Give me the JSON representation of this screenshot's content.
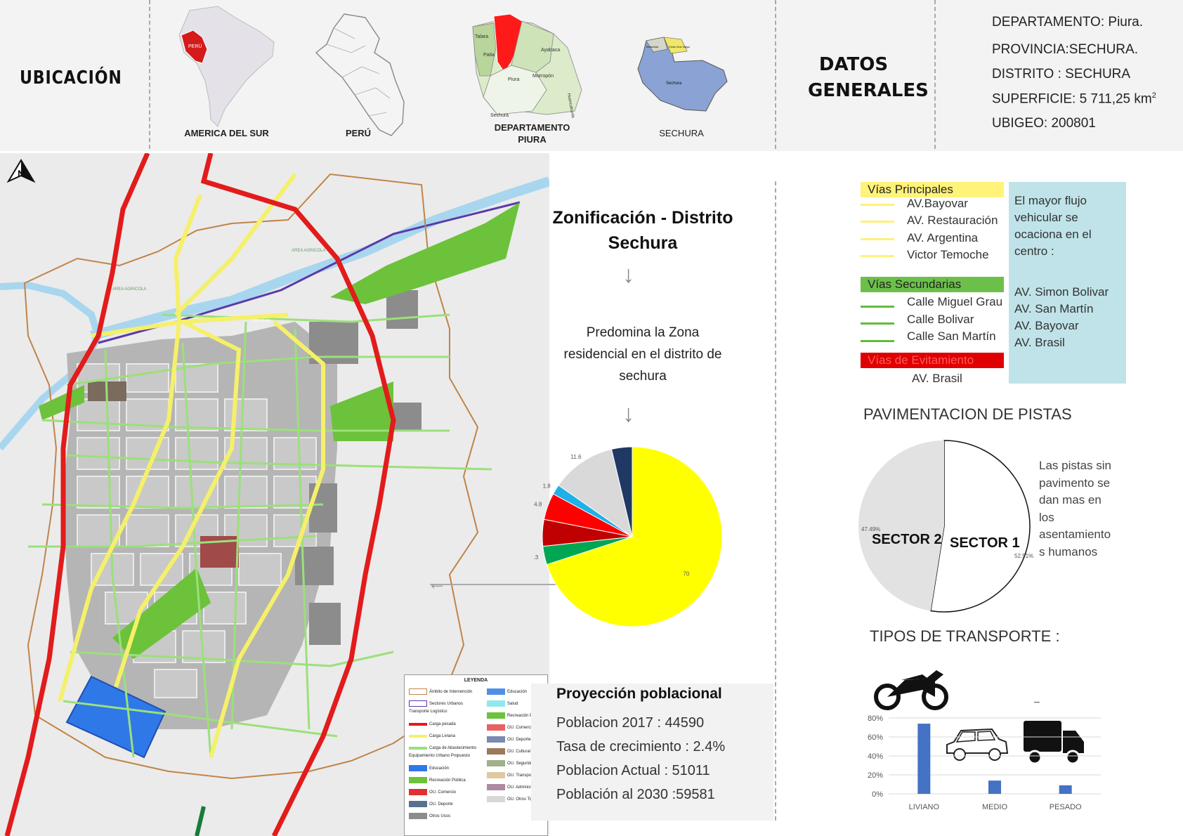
{
  "header": {
    "ubicacion_title": "UBICACIÓN",
    "map_labels": [
      "AMERICA DEL SUR",
      "PERÚ",
      "DEPARTAMENTO",
      "PIURA",
      "SECHURA"
    ],
    "dept_map_labels": [
      "Talara",
      "Paita",
      "Piura",
      "Sechura",
      "Ayabaca",
      "Morropón",
      "Huancabamba"
    ],
    "sechura_map_labels": [
      "Sechura",
      "Bellavista",
      "Cristo Nos Valga"
    ],
    "peru_tag": "PERÚ",
    "datos_title_line1": "DATOS",
    "datos_title_line2": "GENERALES",
    "general_data": {
      "departamento": "DEPARTAMENTO:  Piura.",
      "provincia": "PROVINCIA:SECHURA.",
      "distrito": "DISTRITO : SECHURA",
      "superficie": "SUPERFICIE: 5 711,25 km",
      "superficie_sup": "2",
      "ubigeo": "UBIGEO: 200801"
    }
  },
  "map": {
    "north_symbol": "N",
    "area_labels": [
      "AREA AGRICOLA",
      "AREA AGRICOLA",
      "RIO PIURA"
    ],
    "legend": {
      "title": "LEYENDA",
      "left_items": [
        "Ámbito de Intervención",
        "Sectores Urbanos",
        "Transporte Logístico",
        "Carga pesada",
        "Carga Liviana",
        "Carga de Abastecimiento",
        "Equipamiento Urbano Propuesto",
        "Educación",
        "Recreación Pública",
        "OU. Comercio",
        "OU. Deporte",
        "Otros Usos"
      ],
      "right_items": [
        "Educación",
        "Salud",
        "Recreación P.",
        "OU. Comercio",
        "OU. Deporte",
        "OU. Cultural",
        "OU. Seguridad",
        "OU. Transporte",
        "OU. Administ.",
        "OU. Otros Tip."
      ]
    }
  },
  "zonification": {
    "title_line1": "Zonificación - Distrito",
    "title_line2": "Sechura",
    "arrow": "↓",
    "predomina_line1": "Predomina la Zona",
    "predomina_line2": "residencial en el distrito de",
    "predomina_line3": "sechura",
    "left_arrow": "←"
  },
  "chart_data": [
    {
      "type": "pie",
      "title": "",
      "slices": [
        {
          "value": 70,
          "label": "70",
          "color": "#ffff00"
        },
        {
          "value": 3.3,
          "label": "3.3",
          "color": "#00a651"
        },
        {
          "value": 4.8,
          "label": "",
          "color": "#c00000"
        },
        {
          "value": 4.8,
          "label": "4.8",
          "color": "#ff0000"
        },
        {
          "value": 1.8,
          "label": "1.8",
          "color": "#1fb0e8"
        },
        {
          "value": 11.6,
          "label": "11.6",
          "color": "#d9d9d9"
        },
        {
          "value": 3.7,
          "label": "",
          "color": "#1f3864"
        }
      ]
    },
    {
      "type": "pie",
      "title": "PAVIMENTACION DE PISTAS",
      "slices": [
        {
          "name": "SECTOR 1",
          "value": 52.51,
          "label": "52.51%",
          "color": "#ffffff"
        },
        {
          "name": "SECTOR 2",
          "value": 47.49,
          "label": "47.49%",
          "color": "#e2e2e2"
        }
      ]
    },
    {
      "type": "bar",
      "title": "TIPOS DE TRANSPORTE :",
      "categories": [
        "LIVIANO",
        "MEDIO",
        "PESADO"
      ],
      "values": [
        0.74,
        0.14,
        0.09
      ],
      "yticks": [
        "80%",
        "60%",
        "40%",
        "20%",
        "0%"
      ],
      "ylim": [
        0,
        0.8
      ],
      "color": "#4472c4"
    }
  ],
  "vias": {
    "principales_title": "Vías Principales",
    "principales": [
      "AV.Bayovar",
      "AV. Restauración",
      "AV. Argentina",
      "Victor Temoche"
    ],
    "secundarias_title": "Vías Secundarias",
    "secundarias": [
      "Calle Miguel Grau",
      "Calle Bolivar",
      "Calle San Martín"
    ],
    "evitamiento_title": "Vías de Evitamiento",
    "evitamiento": [
      "AV. Brasil"
    ],
    "colors": {
      "principal": "#fff176",
      "secundaria": "#66bb3a",
      "evitamiento": "#e00000",
      "principal_header": "#fff37a",
      "secundaria_header": "#6cc04a"
    }
  },
  "flujo": {
    "text_line1": "El mayor flujo",
    "text_line2": "vehicular se",
    "text_line3": "ocaciona en el",
    "text_line4": "centro  :",
    "avenues": [
      "AV. Simon Bolivar",
      "AV. San Martín",
      "AV. Bayovar",
      "AV. Brasil"
    ]
  },
  "pavimentacion": {
    "note_lines": [
      "Las pistas sin",
      "pavimento se",
      "dan mas en",
      "los",
      "asentamiento",
      "s humanos"
    ]
  },
  "transporte": {
    "icons": [
      "motorcycle-icon",
      "car-icon",
      "truck-icon"
    ],
    "dash": "–"
  },
  "proyeccion": {
    "title": "Proyección poblacional",
    "lines": [
      "Poblacion 2017 : 44590",
      "Tasa de crecimiento : 2.4%",
      "Poblacion Actual : 51011",
      "Población al 2030  :59581"
    ]
  }
}
